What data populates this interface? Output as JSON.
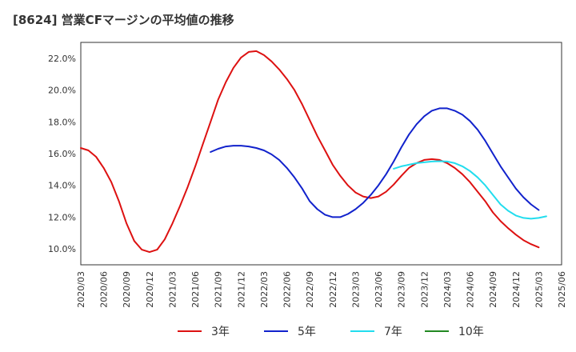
{
  "chart_data": {
    "type": "line",
    "title": "[8624]  営業CFマージンの平均値の推移",
    "xlabel": "",
    "ylabel": "",
    "ylim": [
      9.0,
      23.0
    ],
    "y_ticks": [
      10.0,
      12.0,
      14.0,
      16.0,
      18.0,
      20.0,
      22.0
    ],
    "y_tick_labels": [
      "10.0%",
      "12.0%",
      "14.0%",
      "16.0%",
      "18.0%",
      "20.0%",
      "22.0%"
    ],
    "x_tick_labels": [
      "2020/03",
      "2020/06",
      "2020/09",
      "2020/12",
      "2021/03",
      "2021/06",
      "2021/09",
      "2021/12",
      "2022/03",
      "2022/06",
      "2022/09",
      "2022/12",
      "2023/03",
      "2023/06",
      "2023/09",
      "2023/12",
      "2024/03",
      "2024/06",
      "2024/09",
      "2024/12",
      "2025/03",
      "2025/06"
    ],
    "grid": true,
    "legend_position": "bottom",
    "series": [
      {
        "name": "3年",
        "color": "#dd1111",
        "start": "2020/03",
        "values": [
          16.35,
          16.2,
          15.8,
          15.1,
          14.2,
          13.0,
          11.6,
          10.5,
          9.95,
          9.8,
          9.95,
          10.6,
          11.6,
          12.7,
          13.9,
          15.2,
          16.6,
          18.0,
          19.4,
          20.5,
          21.4,
          22.05,
          22.4,
          22.45,
          22.2,
          21.8,
          21.3,
          20.7,
          20.0,
          19.1,
          18.1,
          17.1,
          16.2,
          15.3,
          14.6,
          14.0,
          13.55,
          13.3,
          13.2,
          13.3,
          13.6,
          14.05,
          14.6,
          15.1,
          15.4,
          15.6,
          15.65,
          15.6,
          15.4,
          15.1,
          14.7,
          14.2,
          13.6,
          13.0,
          12.3,
          11.75,
          11.3,
          10.9,
          10.55,
          10.3,
          10.1
        ]
      },
      {
        "name": "5年",
        "color": "#1122cc",
        "start": "2021/08",
        "values": [
          16.1,
          16.3,
          16.45,
          16.5,
          16.5,
          16.45,
          16.35,
          16.2,
          15.95,
          15.6,
          15.1,
          14.5,
          13.8,
          13.0,
          12.5,
          12.15,
          12.0,
          12.0,
          12.2,
          12.5,
          12.9,
          13.4,
          14.0,
          14.7,
          15.5,
          16.4,
          17.2,
          17.85,
          18.35,
          18.7,
          18.85,
          18.85,
          18.7,
          18.45,
          18.05,
          17.5,
          16.8,
          16.0,
          15.2,
          14.5,
          13.8,
          13.25,
          12.8,
          12.45
        ]
      },
      {
        "name": "7年",
        "color": "#22ddee",
        "start": "2023/08",
        "values": [
          15.05,
          15.2,
          15.3,
          15.4,
          15.45,
          15.5,
          15.52,
          15.5,
          15.4,
          15.2,
          14.9,
          14.5,
          14.0,
          13.4,
          12.8,
          12.4,
          12.1,
          11.95,
          11.9,
          11.95,
          12.05
        ]
      },
      {
        "name": "10年",
        "color": "#228822",
        "start": "",
        "values": []
      }
    ]
  }
}
